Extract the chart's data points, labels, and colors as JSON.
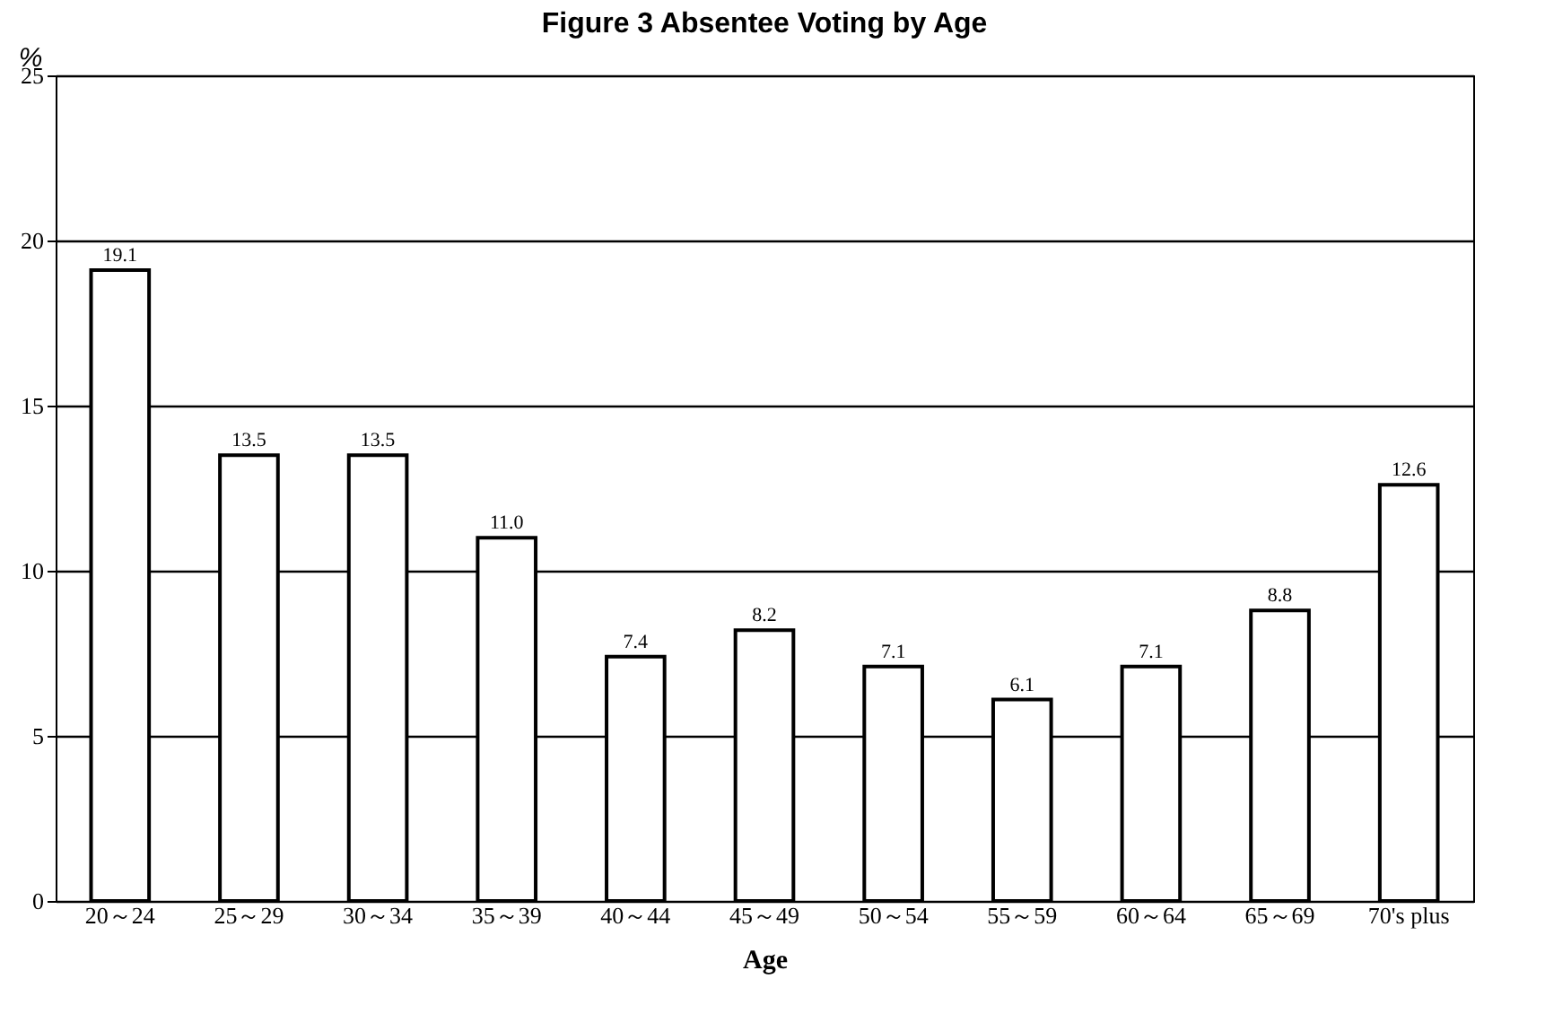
{
  "chart_data": {
    "type": "bar",
    "title": "Figure 3   Absentee Voting by Age",
    "xlabel": "Age",
    "ylabel": "%",
    "categories": [
      "20～24",
      "25～29",
      "30～34",
      "35～39",
      "40～44",
      "45～49",
      "50～54",
      "55～59",
      "60～64",
      "65～69",
      "70's plus"
    ],
    "values": [
      19.1,
      13.5,
      13.5,
      11.0,
      7.4,
      8.2,
      7.1,
      6.1,
      7.1,
      8.8,
      12.6
    ],
    "value_labels": [
      "19.1",
      "13.5",
      "13.5",
      "11.0",
      "7.4",
      "8.2",
      "7.1",
      "6.1",
      "7.1",
      "8.8",
      "12.6"
    ],
    "color": "#ffffff",
    "ylim": [
      0,
      25
    ],
    "yticks": [
      0,
      5,
      10,
      15,
      20,
      25
    ],
    "grid": "y"
  }
}
